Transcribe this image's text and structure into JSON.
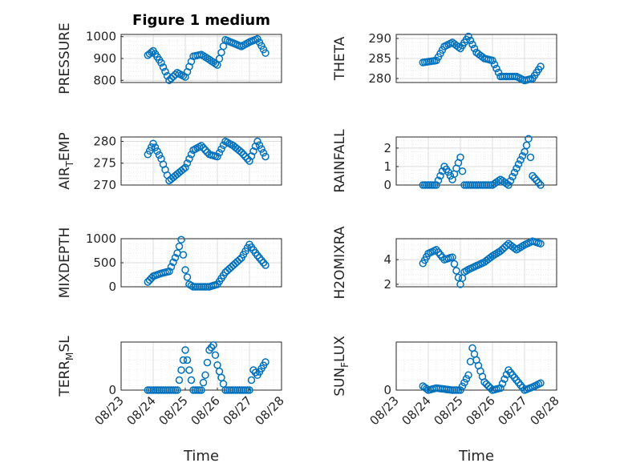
{
  "chart_data": [
    {
      "type": "scatter",
      "title": "Figure 1 medium",
      "ylabel": "PRESSURE",
      "ylim": [
        790,
        1010
      ],
      "yticks": [
        "800",
        "900",
        "1000"
      ],
      "ytick_values": [
        800,
        900,
        1000
      ],
      "x": [
        "08/23 20:00",
        "08/24 00:00",
        "08/24 06:00",
        "08/24 12:00",
        "08/24 18:00",
        "08/25 00:00",
        "08/25 06:00",
        "08/25 12:00",
        "08/25 18:00",
        "08/26 00:00",
        "08/26 06:00",
        "08/26 12:00",
        "08/26 18:00",
        "08/27 00:00",
        "08/27 06:00",
        "08/27 12:00"
      ],
      "y": [
        915,
        935,
        880,
        800,
        835,
        815,
        910,
        918,
        895,
        870,
        985,
        970,
        955,
        975,
        990,
        925
      ],
      "color": "#0072bd",
      "grid": true
    },
    {
      "type": "scatter",
      "ylabel": "THETA",
      "ylim": [
        279,
        291
      ],
      "yticks": [
        "280",
        "285",
        "290"
      ],
      "ytick_values": [
        280,
        285,
        290
      ],
      "x": [
        "08/23 20:00",
        "08/24 06:00",
        "08/24 12:00",
        "08/24 18:00",
        "08/25 00:00",
        "08/25 06:00",
        "08/25 12:00",
        "08/25 18:00",
        "08/26 00:00",
        "08/26 06:00",
        "08/26 12:00",
        "08/26 18:00",
        "08/27 00:00",
        "08/27 06:00",
        "08/27 12:00"
      ],
      "y": [
        284,
        284.5,
        288,
        289,
        287.5,
        290.5,
        286.5,
        285,
        284.5,
        280.5,
        280.5,
        280.5,
        279.5,
        280,
        283
      ],
      "color": "#0072bd",
      "grid": true
    },
    {
      "type": "scatter",
      "ylabel": "AIR_T EMP",
      "ylim": [
        270,
        281
      ],
      "yticks": [
        "270",
        "275",
        "280"
      ],
      "ytick_values": [
        270,
        275,
        280
      ],
      "x": [
        "08/23 20:00",
        "08/24 00:00",
        "08/24 06:00",
        "08/24 12:00",
        "08/24 18:00",
        "08/25 00:00",
        "08/25 06:00",
        "08/25 12:00",
        "08/25 18:00",
        "08/26 00:00",
        "08/26 06:00",
        "08/26 12:00",
        "08/26 18:00",
        "08/27 00:00",
        "08/27 06:00",
        "08/27 12:00"
      ],
      "y": [
        277,
        279.5,
        276,
        271,
        272.5,
        274,
        278,
        279,
        277,
        276.5,
        280,
        279,
        277.5,
        275.5,
        280,
        276.5
      ],
      "color": "#0072bd",
      "grid": true
    },
    {
      "type": "scatter",
      "ylabel": "RAINFALL",
      "ylim": [
        0,
        2.6
      ],
      "yticks": [
        "0",
        "1",
        "2"
      ],
      "ytick_values": [
        0,
        1,
        2
      ],
      "x": [
        "08/23 20:00",
        "08/24 06:00",
        "08/24 12:00",
        "08/24 15:00",
        "08/24 18:00",
        "08/25 00:00",
        "08/25 03:00",
        "08/25 06:00",
        "08/25 12:00",
        "08/26 00:00",
        "08/26 06:00",
        "08/26 12:00",
        "08/27 00:00",
        "08/27 03:00",
        "08/27 06:00",
        "08/27 12:00"
      ],
      "y": [
        0,
        0,
        1.0,
        0.7,
        0.3,
        1.5,
        0,
        0,
        0,
        0,
        0.3,
        0,
        1.8,
        2.5,
        0.5,
        0
      ],
      "color": "#0072bd",
      "grid": true
    },
    {
      "type": "scatter",
      "ylabel": "MIXDEPTH",
      "ylim": [
        0,
        1000
      ],
      "yticks": [
        "0",
        "500",
        "1000"
      ],
      "ytick_values": [
        0,
        500,
        1000
      ],
      "x": [
        "08/23 20:00",
        "08/24 00:00",
        "08/24 06:00",
        "08/24 12:00",
        "08/24 18:00",
        "08/24 21:00",
        "08/25 00:00",
        "08/25 03:00",
        "08/25 06:00",
        "08/25 12:00",
        "08/25 18:00",
        "08/26 00:00",
        "08/26 06:00",
        "08/26 12:00",
        "08/26 18:00",
        "08/27 00:00",
        "08/27 06:00",
        "08/27 12:00"
      ],
      "y": [
        100,
        220,
        280,
        320,
        700,
        980,
        350,
        50,
        0,
        0,
        0,
        50,
        300,
        450,
        600,
        880,
        650,
        450
      ],
      "color": "#0072bd",
      "grid": true
    },
    {
      "type": "scatter",
      "ylabel": "H2OMIXRA",
      "ylim": [
        1.8,
        5.7
      ],
      "yticks": [
        "2",
        "4"
      ],
      "ytick_values": [
        2,
        4
      ],
      "x": [
        "08/23 20:00",
        "08/24 00:00",
        "08/24 06:00",
        "08/24 12:00",
        "08/24 18:00",
        "08/25 00:00",
        "08/25 03:00",
        "08/25 06:00",
        "08/25 12:00",
        "08/25 18:00",
        "08/26 00:00",
        "08/26 06:00",
        "08/26 12:00",
        "08/26 18:00",
        "08/27 00:00",
        "08/27 06:00",
        "08/27 12:00"
      ],
      "y": [
        3.7,
        4.5,
        4.8,
        4.0,
        4.2,
        2.0,
        3.0,
        3.2,
        3.5,
        3.8,
        4.3,
        4.7,
        5.3,
        4.8,
        5.2,
        5.5,
        5.3
      ],
      "color": "#0072bd",
      "grid": true
    },
    {
      "type": "scatter",
      "ylabel": "TERR_M SL",
      "ylim": [
        0,
        480
      ],
      "yticks": [
        "0",
        "500"
      ],
      "ytick_values": [
        0,
        500
      ],
      "x": [
        "08/23 20:00",
        "08/24 06:00",
        "08/24 18:00",
        "08/25 00:00",
        "08/25 06:00",
        "08/25 12:00",
        "08/25 15:00",
        "08/25 18:00",
        "08/25 21:00",
        "08/26 00:00",
        "08/26 06:00",
        "08/26 12:00",
        "08/27 00:00",
        "08/27 03:00",
        "08/27 06:00",
        "08/27 12:00"
      ],
      "y": [
        0,
        0,
        0,
        400,
        0,
        0,
        150,
        400,
        450,
        250,
        0,
        0,
        0,
        200,
        150,
        280
      ],
      "color": "#0072bd",
      "grid": true
    },
    {
      "type": "scatter",
      "ylabel": "SUN_F LUX",
      "ylim": [
        0,
        480
      ],
      "yticks": [
        "0",
        "500"
      ],
      "ytick_values": [
        0,
        500
      ],
      "x": [
        "08/23 20:00",
        "08/24 00:00",
        "08/24 06:00",
        "08/24 12:00",
        "08/24 18:00",
        "08/25 00:00",
        "08/25 06:00",
        "08/25 09:00",
        "08/25 12:00",
        "08/25 18:00",
        "08/26 00:00",
        "08/26 06:00",
        "08/26 12:00",
        "08/26 18:00",
        "08/27 00:00",
        "08/27 06:00",
        "08/27 12:00"
      ],
      "y": [
        40,
        0,
        20,
        10,
        0,
        0,
        150,
        420,
        300,
        80,
        0,
        20,
        200,
        100,
        0,
        30,
        70
      ],
      "color": "#0072bd",
      "grid": true
    }
  ],
  "x_axis": {
    "label": "Time",
    "ticks": [
      "08/23",
      "08/24",
      "08/25",
      "08/26",
      "08/27",
      "08/28"
    ],
    "range": [
      "08/23 00:00",
      "08/28 00:00"
    ]
  }
}
